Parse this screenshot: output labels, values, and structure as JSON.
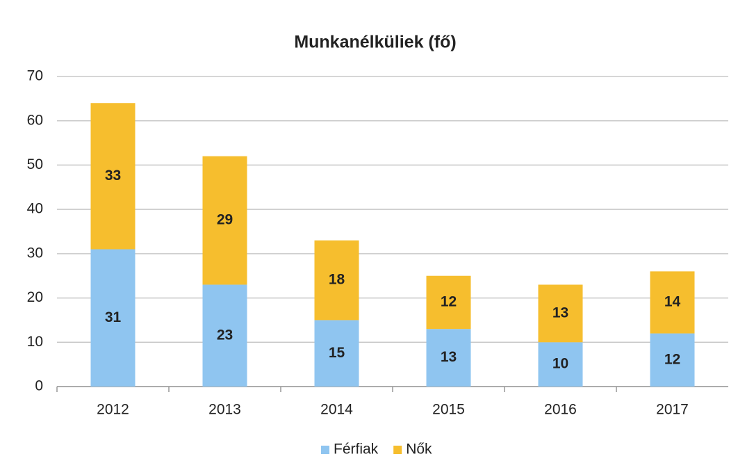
{
  "chart_data": {
    "type": "stacked_bar",
    "title": "Munkanélküliek (fő)",
    "categories": [
      "2012",
      "2013",
      "2014",
      "2015",
      "2016",
      "2017"
    ],
    "series": [
      {
        "name": "Férfiak",
        "color": "#8fc5f0",
        "values": [
          31,
          23,
          15,
          13,
          10,
          12
        ]
      },
      {
        "name": "Nők",
        "color": "#f6be2e",
        "values": [
          33,
          29,
          18,
          12,
          13,
          14
        ]
      }
    ],
    "ylim": [
      0,
      70
    ],
    "yticks": [
      0,
      10,
      20,
      30,
      40,
      50,
      60,
      70
    ],
    "grid": true,
    "legend": "bottom"
  }
}
